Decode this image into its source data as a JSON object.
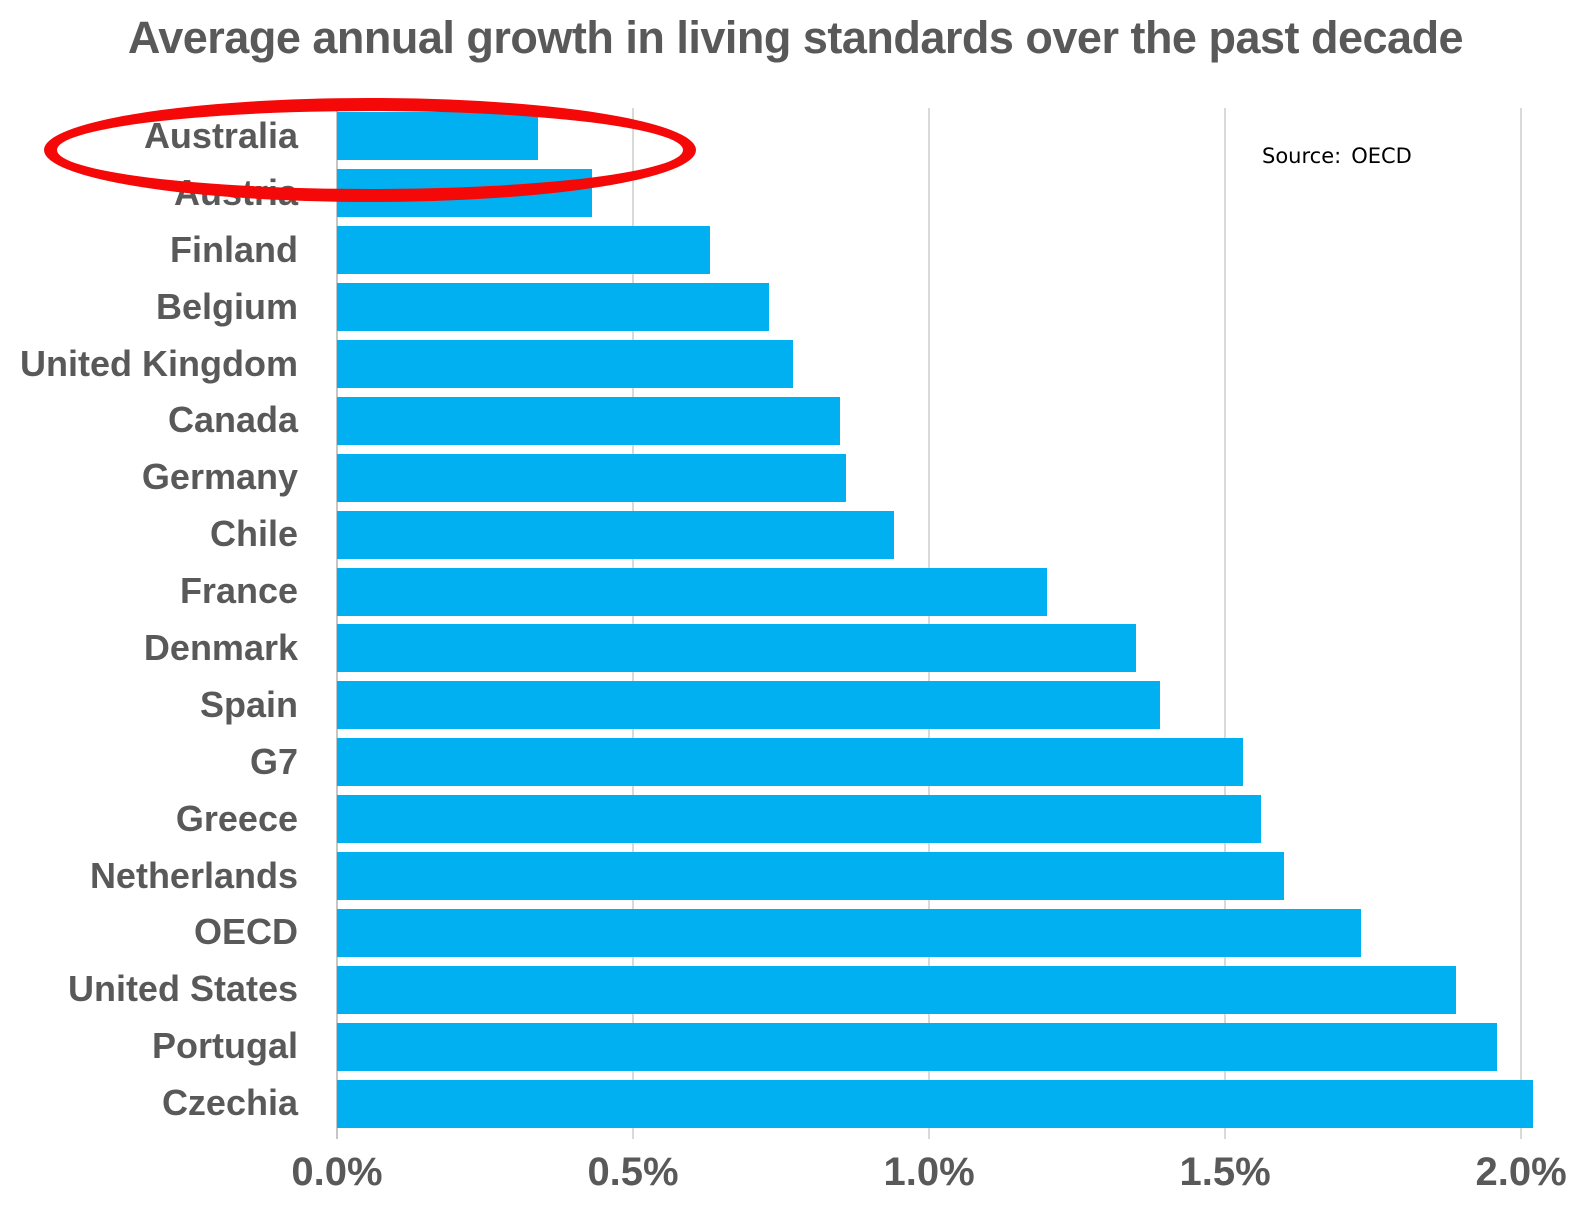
{
  "title": "Average annual growth in living standards over the past decade",
  "source": {
    "label": "Source:",
    "value": "OECD"
  },
  "chart_data": {
    "type": "bar",
    "orientation": "horizontal",
    "title": "Average annual growth in living standards over the past decade",
    "categories": [
      "Australia",
      "Austria",
      "Finland",
      "Belgium",
      "United Kingdom",
      "Canada",
      "Germany",
      "Chile",
      "France",
      "Denmark",
      "Spain",
      "G7",
      "Greece",
      "Netherlands",
      "OECD",
      "United States",
      "Portugal",
      "Czechia"
    ],
    "values": [
      0.34,
      0.43,
      0.63,
      0.73,
      0.77,
      0.85,
      0.86,
      0.94,
      1.2,
      1.35,
      1.39,
      1.53,
      1.56,
      1.6,
      1.73,
      1.89,
      1.96,
      2.02
    ],
    "unit": "%",
    "xlabel": "",
    "ylabel": "",
    "xlim": [
      0,
      2.118
    ],
    "x_ticks": [
      0,
      0.5,
      1.0,
      1.5,
      2.0
    ],
    "x_tick_labels": [
      "0.0%",
      "0.5%",
      "1.0%",
      "1.5%",
      "2.0%"
    ],
    "grid": "vertical-only",
    "legend": "none",
    "bar_color": "#00B0F0",
    "label_color": "#595959",
    "gridline_color": "#D9D9D9",
    "source_text": "Source: OECD",
    "annotation": {
      "type": "hand-drawn-ellipse-highlight",
      "target": "Australia",
      "color": "#F40808"
    }
  }
}
